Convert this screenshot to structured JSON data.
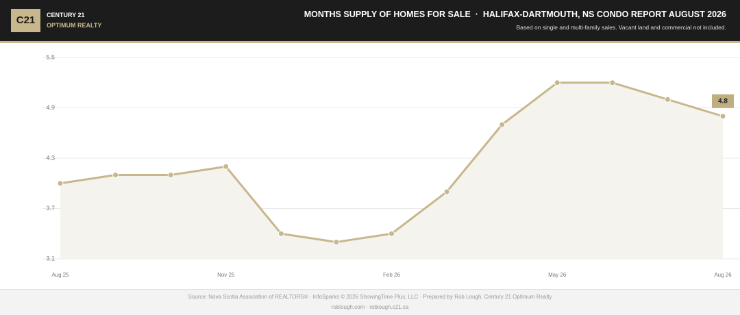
{
  "header": {
    "logo": "C21",
    "brand": "CENTURY 21",
    "office": "OPTIMUM REALTY"
  },
  "chart_data": {
    "type": "line",
    "title": "MONTHS SUPPLY OF HOMES FOR SALE  ·  HALIFAX-DARTMOUTH, NS CONDO REPORT AUGUST 2026",
    "subtitle": "Based on single and multi-family sales. Vacant land and commercial not included.",
    "categories": [
      "Aug 25",
      null,
      null,
      "Nov 25",
      null,
      null,
      "Feb 26",
      null,
      null,
      "May 26",
      null,
      null,
      "Aug 26"
    ],
    "values": [
      4.0,
      4.1,
      4.1,
      4.2,
      3.4,
      3.3,
      3.4,
      3.9,
      4.7,
      5.2,
      5.2,
      5.0,
      4.8
    ],
    "color": "#c8b78c",
    "area": true,
    "ylim": [
      3.1,
      5.5
    ],
    "yticks": [
      3.1,
      3.7,
      4.3,
      4.9,
      5.5
    ],
    "grid": true
  },
  "footer": {
    "source": "Source: Nova Scotia Association of REALTORS® · InfoSparks © 2026 ShowingTime Plus, LLC · Prepared by Rob Lough, Century 21 Optimum Realty",
    "links": "roblough.com · roblough.c21.ca"
  }
}
